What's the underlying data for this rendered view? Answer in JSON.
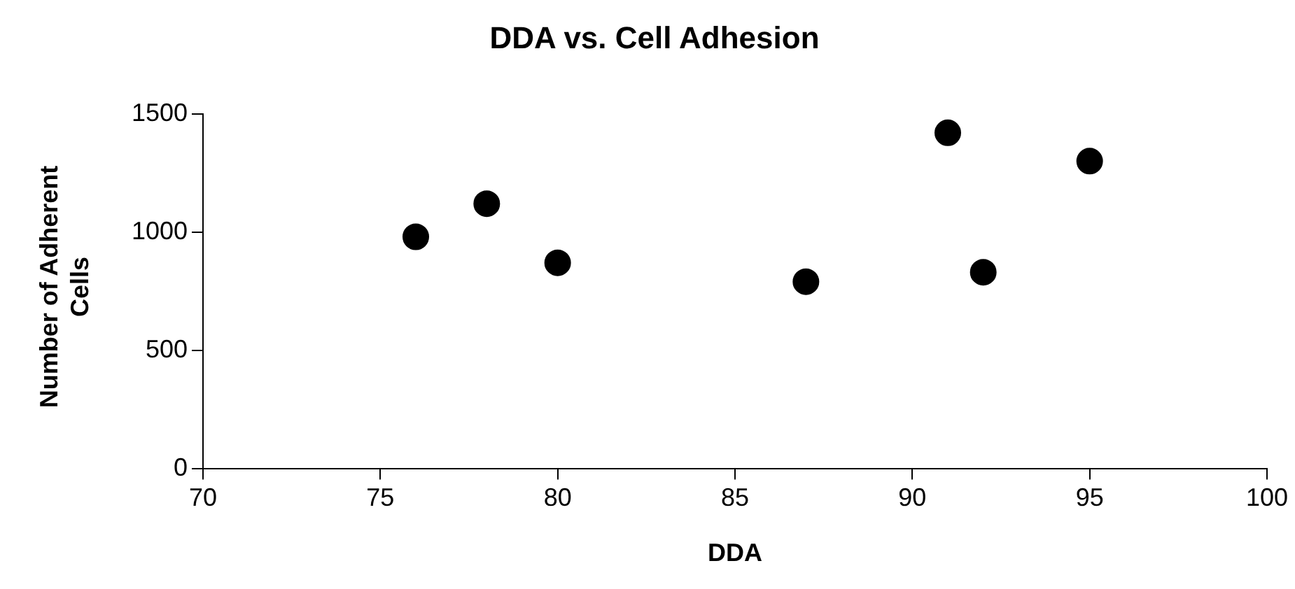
{
  "chart_data": {
    "type": "scatter",
    "title": "DDA vs. Cell Adhesion",
    "xlabel": "DDA",
    "ylabel": "Number of Adherent Cells",
    "x": [
      76,
      78,
      80,
      87,
      91,
      92,
      95
    ],
    "values": [
      980,
      1120,
      870,
      790,
      1420,
      830,
      1300
    ],
    "color": "#000000",
    "marker": "circle",
    "grid": false,
    "legend": false,
    "xlim": [
      70,
      100
    ],
    "xticks": [
      70,
      75,
      80,
      85,
      90,
      95,
      100
    ],
    "ylim": [
      0,
      1500
    ],
    "yticks": [
      0,
      500,
      1000,
      1500
    ]
  }
}
